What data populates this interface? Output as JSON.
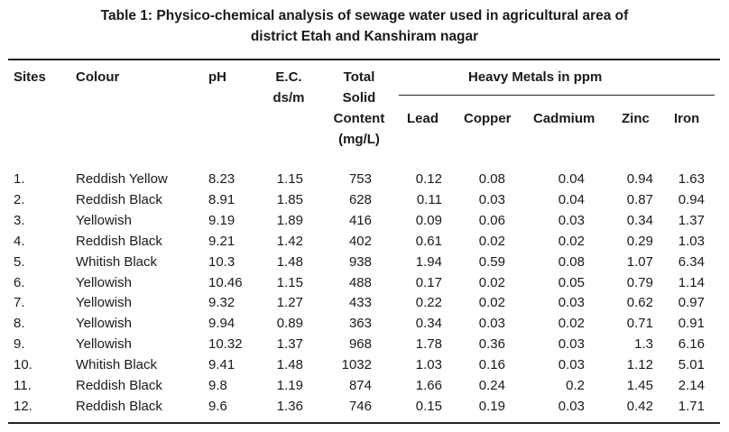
{
  "caption": {
    "line1": "Table 1: Physico-chemical analysis of sewage water used in agricultural area of",
    "line2": "district Etah and Kanshiram nagar"
  },
  "headers": {
    "sites": "Sites",
    "colour": "Colour",
    "ph": "pH",
    "ec_line1": "E.C.",
    "ec_line2": "ds/m",
    "tsc_line1": "Total",
    "tsc_line2": "Solid",
    "tsc_line3": "Content",
    "tsc_line4": "(mg/L)",
    "heavy_metals": "Heavy Metals in ppm",
    "lead": "Lead",
    "copper": "Copper",
    "cadmium": "Cadmium",
    "zinc": "Zinc",
    "iron": "Iron"
  },
  "rows": [
    [
      "1.",
      "Reddish Yellow",
      "8.23",
      "1.15",
      "753",
      "0.12",
      "0.08",
      "0.04",
      "0.94",
      "1.63"
    ],
    [
      "2.",
      "Reddish Black",
      "8.91",
      "1.85",
      "628",
      "0.11",
      "0.03",
      "0.04",
      "0.87",
      "0.94"
    ],
    [
      "3.",
      "Yellowish",
      "9.19",
      "1.89",
      "416",
      "0.09",
      "0.06",
      "0.03",
      "0.34",
      "1.37"
    ],
    [
      "4.",
      "Reddish Black",
      "9.21",
      "1.42",
      "402",
      "0.61",
      "0.02",
      "0.02",
      "0.29",
      "1.03"
    ],
    [
      "5.",
      "Whitish Black",
      "10.3",
      "1.48",
      "938",
      "1.94",
      "0.59",
      "0.08",
      "1.07",
      "6.34"
    ],
    [
      "6.",
      "Yellowish",
      "10.46",
      "1.15",
      "488",
      "0.17",
      "0.02",
      "0.05",
      "0.79",
      "1.14"
    ],
    [
      "7.",
      "Yellowish",
      "9.32",
      "1.27",
      "433",
      "0.22",
      "0.02",
      "0.03",
      "0.62",
      "0.97"
    ],
    [
      "8.",
      "Yellowish",
      "9.94",
      "0.89",
      "363",
      "0.34",
      "0.03",
      "0.02",
      "0.71",
      "0.91"
    ],
    [
      "9.",
      "Yellowish",
      "10.32",
      "1.37",
      "968",
      "1.78",
      "0.36",
      "0.03",
      "1.3",
      "6.16"
    ],
    [
      "10.",
      "Whitish Black",
      "9.41",
      "1.48",
      "1032",
      "1.03",
      "0.16",
      "0.03",
      "1.12",
      "5.01"
    ],
    [
      "11.",
      "Reddish Black",
      "9.8",
      "1.19",
      "874",
      "1.66",
      "0.24",
      "0.2",
      "1.45",
      "2.14"
    ],
    [
      "12.",
      "Reddish Black",
      "9.6",
      "1.36",
      "746",
      "0.15",
      "0.19",
      "0.03",
      "0.42",
      "1.71"
    ]
  ]
}
